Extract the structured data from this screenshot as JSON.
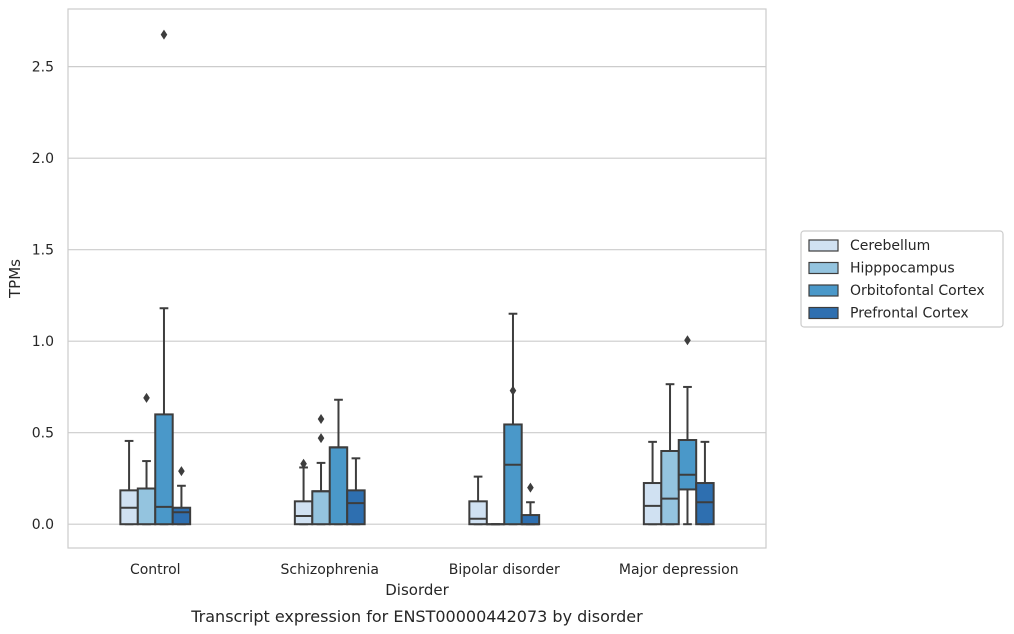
{
  "chart_data": {
    "type": "box",
    "caption": "Transcript expression for ENST00000442073 by disorder",
    "xlabel": "Disorder",
    "ylabel": "TPMs",
    "ylim": [
      -0.13,
      2.815
    ],
    "yticks": [
      "0.0",
      "0.5",
      "1.0",
      "1.5",
      "2.0",
      "2.5"
    ],
    "ytick_values": [
      0.0,
      0.5,
      1.0,
      1.5,
      2.0,
      2.5
    ],
    "grid": true,
    "legend_position": "right",
    "categories": [
      "Control",
      "Schizophrenia",
      "Bipolar disorder",
      "Major depression"
    ],
    "series": [
      {
        "name": "Cerebellum",
        "color": "#d0e1f2",
        "boxes": [
          {
            "whislo": 0.0,
            "q1": 0.0,
            "med": 0.09,
            "q3": 0.185,
            "whishi": 0.455,
            "fliers": []
          },
          {
            "whislo": 0.0,
            "q1": 0.0,
            "med": 0.045,
            "q3": 0.125,
            "whishi": 0.31,
            "fliers": [
              0.33
            ]
          },
          {
            "whislo": 0.0,
            "q1": 0.0,
            "med": 0.03,
            "q3": 0.125,
            "whishi": 0.26,
            "fliers": []
          },
          {
            "whislo": 0.0,
            "q1": 0.0,
            "med": 0.1,
            "q3": 0.225,
            "whishi": 0.45,
            "fliers": []
          }
        ]
      },
      {
        "name": "Hipppocampus",
        "color": "#94c4df",
        "boxes": [
          {
            "whislo": 0.0,
            "q1": 0.0,
            "med": 0.195,
            "q3": 0.195,
            "whishi": 0.345,
            "fliers": [
              0.69
            ]
          },
          {
            "whislo": 0.0,
            "q1": 0.0,
            "med": 0.18,
            "q3": 0.18,
            "whishi": 0.335,
            "fliers": [
              0.47,
              0.575
            ]
          },
          {
            "whislo": 0.0,
            "q1": 0.0,
            "med": 0.0,
            "q3": 0.0,
            "whishi": 0.0,
            "fliers": []
          },
          {
            "whislo": 0.0,
            "q1": 0.0,
            "med": 0.14,
            "q3": 0.4,
            "whishi": 0.765,
            "fliers": []
          }
        ]
      },
      {
        "name": "Orbitofontal Cortex",
        "color": "#4a98c9",
        "boxes": [
          {
            "whislo": 0.0,
            "q1": 0.0,
            "med": 0.095,
            "q3": 0.6,
            "whishi": 1.18,
            "fliers": [
              2.675
            ]
          },
          {
            "whislo": 0.0,
            "q1": 0.0,
            "med": 0.42,
            "q3": 0.42,
            "whishi": 0.68,
            "fliers": []
          },
          {
            "whislo": 0.0,
            "q1": 0.0,
            "med": 0.325,
            "q3": 0.545,
            "whishi": 1.15,
            "fliers": [
              0.73
            ]
          },
          {
            "whislo": 0.0,
            "q1": 0.19,
            "med": 0.27,
            "q3": 0.46,
            "whishi": 0.75,
            "fliers": [
              1.005
            ]
          }
        ]
      },
      {
        "name": "Prefrontal Cortex",
        "color": "#2e6fb0",
        "boxes": [
          {
            "whislo": 0.0,
            "q1": 0.0,
            "med": 0.065,
            "q3": 0.09,
            "whishi": 0.21,
            "fliers": [
              0.29
            ]
          },
          {
            "whislo": 0.0,
            "q1": 0.0,
            "med": 0.115,
            "q3": 0.185,
            "whishi": 0.36,
            "fliers": []
          },
          {
            "whislo": 0.0,
            "q1": 0.0,
            "med": 0.0,
            "q3": 0.05,
            "whishi": 0.12,
            "fliers": [
              0.2
            ]
          },
          {
            "whislo": 0.0,
            "q1": 0.0,
            "med": 0.12,
            "q3": 0.225,
            "whishi": 0.45,
            "fliers": []
          }
        ]
      }
    ]
  }
}
